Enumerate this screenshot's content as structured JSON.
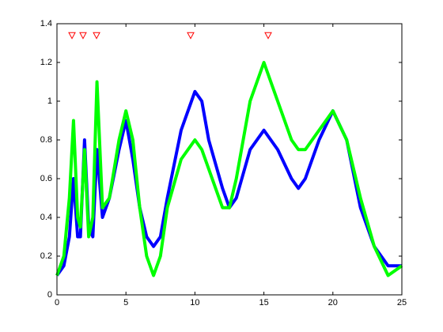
{
  "chart_data": {
    "type": "line",
    "x": [
      0,
      0.5,
      0.9,
      1.2,
      1.5,
      1.7,
      2.0,
      2.3,
      2.6,
      2.9,
      3.3,
      3.8,
      4.5,
      5.0,
      5.5,
      6,
      6.5,
      7,
      7.5,
      8,
      9,
      10,
      10.5,
      11,
      12,
      12.5,
      13,
      14,
      15,
      16,
      17,
      17.5,
      18,
      19,
      20,
      21,
      22,
      23,
      24,
      25
    ],
    "series": [
      {
        "color": "#0000ff",
        "values": [
          0.1,
          0.15,
          0.3,
          0.6,
          0.3,
          0.3,
          0.8,
          0.35,
          0.3,
          0.75,
          0.4,
          0.5,
          0.75,
          0.9,
          0.7,
          0.45,
          0.3,
          0.25,
          0.3,
          0.5,
          0.85,
          1.05,
          1.0,
          0.8,
          0.55,
          0.45,
          0.5,
          0.75,
          0.85,
          0.75,
          0.6,
          0.55,
          0.6,
          0.8,
          0.95,
          0.8,
          0.45,
          0.25,
          0.15,
          0.15
        ]
      },
      {
        "color": "#00ff00",
        "values": [
          0.1,
          0.2,
          0.5,
          0.9,
          0.4,
          0.35,
          0.75,
          0.3,
          0.4,
          1.1,
          0.45,
          0.5,
          0.8,
          0.95,
          0.8,
          0.45,
          0.2,
          0.1,
          0.2,
          0.45,
          0.7,
          0.8,
          0.75,
          0.65,
          0.45,
          0.45,
          0.6,
          1.0,
          1.2,
          1.0,
          0.8,
          0.75,
          0.75,
          0.85,
          0.95,
          0.8,
          0.5,
          0.25,
          0.1,
          0.15
        ]
      }
    ],
    "markers": {
      "x": [
        1.09,
        1.89,
        2.87,
        9.69,
        15.31
      ],
      "y": [
        1.34,
        1.34,
        1.34,
        1.34,
        1.34
      ],
      "color": "#ff0000"
    },
    "xlim": [
      0,
      25
    ],
    "xticks": [
      0,
      5,
      10,
      15,
      20,
      25
    ],
    "ylim": [
      0,
      1.4
    ],
    "yticks": [
      0,
      0.2,
      0.4,
      0.6,
      0.8,
      1,
      1.2,
      1.4
    ]
  }
}
